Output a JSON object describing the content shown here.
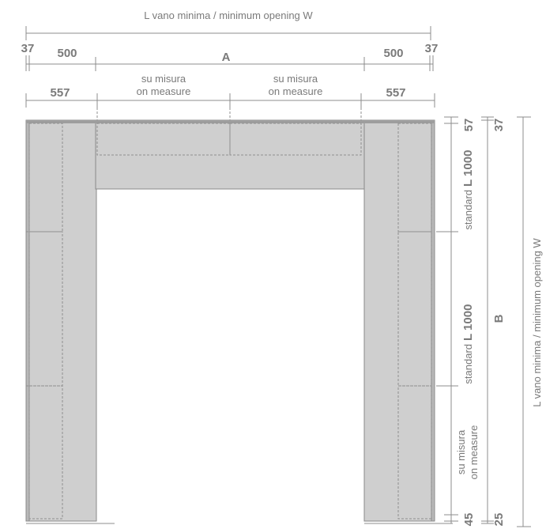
{
  "top_labels": {
    "overall": "L vano minima / minimum opening W",
    "left_37": "37",
    "left_500": "500",
    "center_A": "A",
    "right_500": "500",
    "right_37": "37",
    "left_557": "557",
    "measure_left_1": "su misura",
    "measure_left_2": "on measure",
    "measure_right_1": "su misura",
    "measure_right_2": "on measure",
    "right_557": "557"
  },
  "right_labels": {
    "top_57": "57",
    "top_37": "37",
    "standard_prefix": "standard",
    "standard_value": "L 1000",
    "standard2_prefix": "standard",
    "standard2_value": "L 1000",
    "B": "B",
    "measure_1": "su misura",
    "measure_2": "on measure",
    "bottom_45": "45",
    "bottom_25": "25",
    "overall": "L vano minima / minimum opening W"
  },
  "colors": {
    "panel": "#cfcfcf",
    "panel_edge": "#8a8a8a",
    "dimension": "#8c8c8c",
    "text": "#7a7a7a"
  }
}
